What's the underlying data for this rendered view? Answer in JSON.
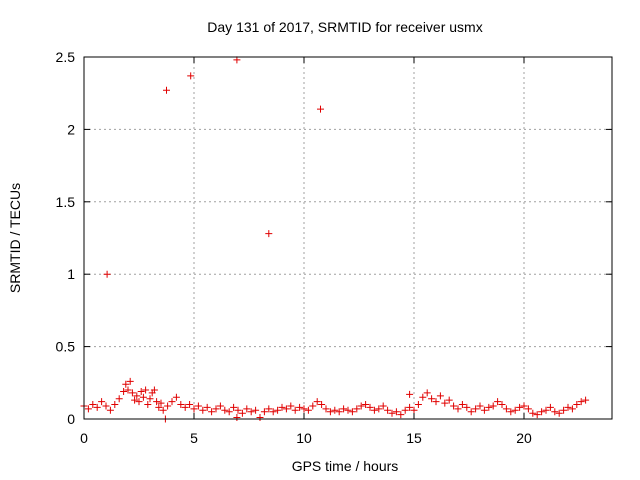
{
  "chart_data": {
    "type": "scatter",
    "title": "Day 131 of 2017, SRMTID for receiver usmx",
    "xlabel": "GPS time / hours",
    "ylabel": "SRMTID / TECUs",
    "xlim": [
      0,
      24
    ],
    "ylim": [
      0,
      2.5
    ],
    "xticks": [
      0,
      5,
      10,
      15,
      20
    ],
    "xtick_labels": [
      "0",
      "5",
      "10",
      "15",
      "20"
    ],
    "yticks": [
      0,
      0.5,
      1,
      1.5,
      2,
      2.5
    ],
    "ytick_labels": [
      "0",
      "0.5",
      "1",
      "1.5",
      "2",
      "2.5"
    ],
    "grid": true,
    "marker": "+",
    "series": [
      {
        "name": "SRMTID",
        "color": "#e00000",
        "points": [
          [
            1.05,
            1.0
          ],
          [
            3.75,
            2.27
          ],
          [
            4.85,
            2.37
          ],
          [
            6.95,
            2.48
          ],
          [
            8.4,
            1.28
          ],
          [
            10.75,
            2.14
          ],
          [
            3.7,
            0.0
          ],
          [
            6.95,
            0.01
          ],
          [
            8.0,
            0.01
          ],
          [
            14.8,
            0.17
          ],
          [
            0.0,
            0.09
          ],
          [
            0.2,
            0.07
          ],
          [
            0.4,
            0.1
          ],
          [
            0.6,
            0.08
          ],
          [
            0.8,
            0.12
          ],
          [
            1.0,
            0.09
          ],
          [
            1.2,
            0.06
          ],
          [
            1.4,
            0.1
          ],
          [
            1.6,
            0.14
          ],
          [
            1.8,
            0.19
          ],
          [
            1.9,
            0.24
          ],
          [
            2.0,
            0.2
          ],
          [
            2.1,
            0.26
          ],
          [
            2.2,
            0.18
          ],
          [
            2.3,
            0.13
          ],
          [
            2.4,
            0.16
          ],
          [
            2.5,
            0.12
          ],
          [
            2.6,
            0.19
          ],
          [
            2.7,
            0.15
          ],
          [
            2.8,
            0.2
          ],
          [
            2.9,
            0.1
          ],
          [
            3.0,
            0.14
          ],
          [
            3.1,
            0.18
          ],
          [
            3.2,
            0.2
          ],
          [
            3.3,
            0.12
          ],
          [
            3.4,
            0.08
          ],
          [
            3.5,
            0.11
          ],
          [
            3.6,
            0.06
          ],
          [
            3.8,
            0.09
          ],
          [
            4.0,
            0.12
          ],
          [
            4.2,
            0.15
          ],
          [
            4.4,
            0.1
          ],
          [
            4.6,
            0.08
          ],
          [
            4.8,
            0.1
          ],
          [
            5.0,
            0.07
          ],
          [
            5.2,
            0.09
          ],
          [
            5.4,
            0.06
          ],
          [
            5.6,
            0.08
          ],
          [
            5.8,
            0.05
          ],
          [
            6.0,
            0.07
          ],
          [
            6.2,
            0.09
          ],
          [
            6.4,
            0.06
          ],
          [
            6.6,
            0.05
          ],
          [
            6.8,
            0.08
          ],
          [
            7.0,
            0.06
          ],
          [
            7.2,
            0.04
          ],
          [
            7.4,
            0.07
          ],
          [
            7.6,
            0.05
          ],
          [
            7.8,
            0.06
          ],
          [
            8.2,
            0.05
          ],
          [
            8.4,
            0.07
          ],
          [
            8.6,
            0.05
          ],
          [
            8.8,
            0.06
          ],
          [
            9.0,
            0.08
          ],
          [
            9.2,
            0.07
          ],
          [
            9.4,
            0.09
          ],
          [
            9.6,
            0.06
          ],
          [
            9.8,
            0.08
          ],
          [
            10.0,
            0.07
          ],
          [
            10.2,
            0.06
          ],
          [
            10.4,
            0.09
          ],
          [
            10.6,
            0.12
          ],
          [
            10.8,
            0.1
          ],
          [
            11.0,
            0.07
          ],
          [
            11.2,
            0.05
          ],
          [
            11.4,
            0.06
          ],
          [
            11.6,
            0.05
          ],
          [
            11.8,
            0.07
          ],
          [
            12.0,
            0.06
          ],
          [
            12.2,
            0.05
          ],
          [
            12.4,
            0.07
          ],
          [
            12.6,
            0.09
          ],
          [
            12.8,
            0.1
          ],
          [
            13.0,
            0.08
          ],
          [
            13.2,
            0.06
          ],
          [
            13.4,
            0.07
          ],
          [
            13.6,
            0.09
          ],
          [
            13.8,
            0.06
          ],
          [
            14.0,
            0.04
          ],
          [
            14.2,
            0.05
          ],
          [
            14.4,
            0.03
          ],
          [
            14.6,
            0.06
          ],
          [
            14.8,
            0.08
          ],
          [
            15.0,
            0.06
          ],
          [
            15.2,
            0.1
          ],
          [
            15.4,
            0.15
          ],
          [
            15.6,
            0.18
          ],
          [
            15.8,
            0.14
          ],
          [
            16.0,
            0.12
          ],
          [
            16.2,
            0.16
          ],
          [
            16.4,
            0.11
          ],
          [
            16.6,
            0.13
          ],
          [
            16.8,
            0.09
          ],
          [
            17.0,
            0.07
          ],
          [
            17.2,
            0.1
          ],
          [
            17.4,
            0.08
          ],
          [
            17.6,
            0.05
          ],
          [
            17.8,
            0.07
          ],
          [
            18.0,
            0.09
          ],
          [
            18.2,
            0.06
          ],
          [
            18.4,
            0.08
          ],
          [
            18.6,
            0.09
          ],
          [
            18.8,
            0.12
          ],
          [
            19.0,
            0.1
          ],
          [
            19.2,
            0.07
          ],
          [
            19.4,
            0.05
          ],
          [
            19.6,
            0.06
          ],
          [
            19.8,
            0.08
          ],
          [
            20.0,
            0.09
          ],
          [
            20.2,
            0.07
          ],
          [
            20.4,
            0.04
          ],
          [
            20.6,
            0.03
          ],
          [
            20.8,
            0.05
          ],
          [
            21.0,
            0.06
          ],
          [
            21.2,
            0.08
          ],
          [
            21.4,
            0.05
          ],
          [
            21.6,
            0.04
          ],
          [
            21.8,
            0.06
          ],
          [
            22.0,
            0.08
          ],
          [
            22.2,
            0.07
          ],
          [
            22.4,
            0.1
          ],
          [
            22.6,
            0.12
          ],
          [
            22.8,
            0.13
          ]
        ]
      }
    ]
  }
}
